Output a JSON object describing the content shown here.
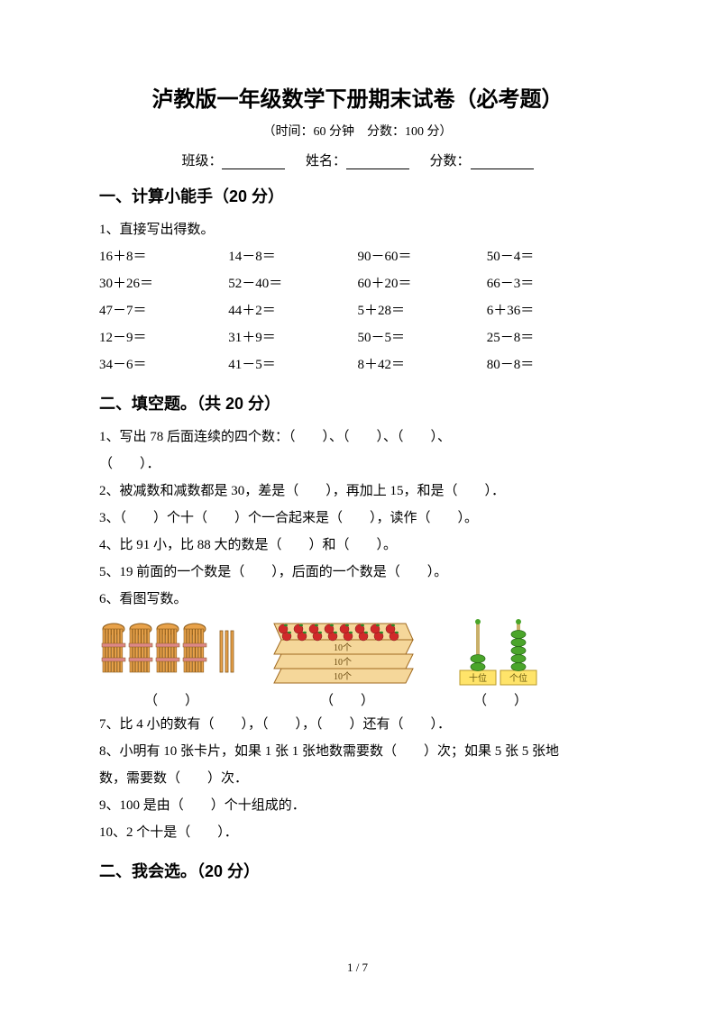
{
  "title": "泸教版一年级数学下册期末试卷（必考题）",
  "subtitle": "（时间：60 分钟　分数：100 分）",
  "info": {
    "class_label": "班级：",
    "name_label": "姓名：",
    "score_label": "分数："
  },
  "section1": {
    "head": "一、计算小能手（20 分）",
    "q1": "1、直接写出得数。",
    "rows": [
      [
        "16＋8＝",
        "14－8＝",
        "90－60＝",
        "50－4＝"
      ],
      [
        "30＋26＝",
        "52－40＝",
        "60＋20＝",
        "66－3＝"
      ],
      [
        "47－7＝",
        "44＋2＝",
        "5＋28＝",
        "6＋36＝"
      ],
      [
        "12－9＝",
        "31＋9＝",
        "50－5＝",
        "25－8＝"
      ],
      [
        "34－6＝",
        "41－5＝",
        "8＋42＝",
        "80－8＝"
      ]
    ]
  },
  "section2": {
    "head": "二、填空题。（共 20 分）",
    "q1a": "1、写出 78 后面连续的四个数：（　　）、（　　）、（　　）、",
    "q1b": "（　　）．",
    "q2": "2、被减数和减数都是 30，差是（　　），再加上 15，和是（　　）．",
    "q3": "3、（　　）个十（　　）个一合起来是（　　），读作（　　）。",
    "q4": "4、比 91 小，比 88 大的数是（　　）和（　　）。",
    "q5": "5、19 前面的一个数是（　　），后面的一个数是（　　）。",
    "q6": "6、看图写数。",
    "img_labels": {
      "ten": "10个",
      "tens_place": "十位",
      "ones_place": "个位"
    },
    "caption1": "（　　）",
    "caption2": "（　　）",
    "caption3": "（　　）",
    "q7": "7、比 4 小的数有（　　），（　　），（　　）还有（　　）．",
    "q8a": "8、小明有 10 张卡片，如果 1 张 1 张地数需要数（　　）次；如果 5 张 5 张地",
    "q8b": "数，需要数（　　）次．",
    "q9": "9、100 是由（　　）个十组成的．",
    "q10": "10、2 个十是（　　）．"
  },
  "section3": {
    "head": "二、我会选。（20 分）"
  },
  "footer": "1 / 7",
  "colors": {
    "bundle_fill": "#e8a24a",
    "bundle_stroke": "#8a5a1a",
    "box_fill": "#f5d79a",
    "box_stroke": "#a06a20",
    "apple": "#d02a2a",
    "leaf": "#2a8a2a",
    "bead": "#4aa52a",
    "rod": "#c9b06a",
    "base_fill": "#ffe46a",
    "base_stroke": "#b89a2a"
  }
}
